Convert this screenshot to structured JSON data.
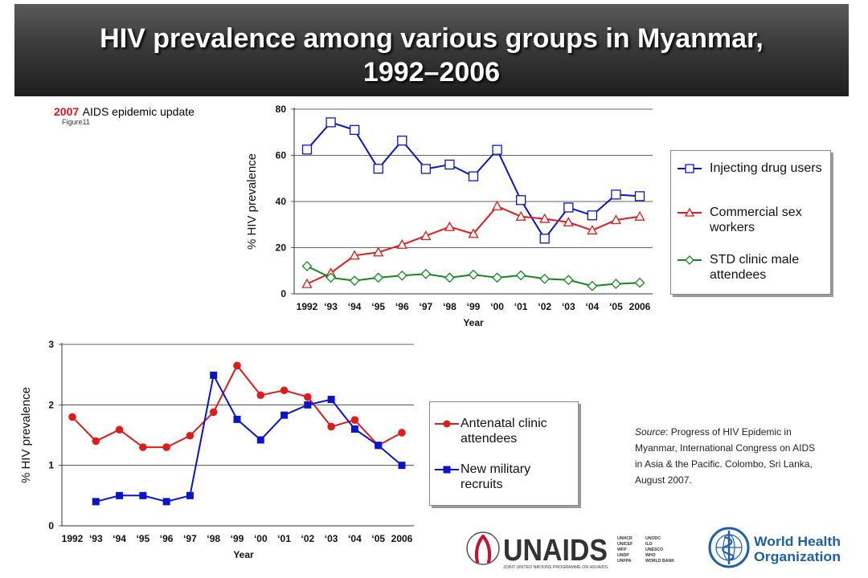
{
  "header": {
    "title_line1": "HIV prevalence among various groups in Myanmar,",
    "title_line2": "1992–2006"
  },
  "figure_ref": {
    "year": "2007",
    "publication": "AIDS epidemic update",
    "figure": "Figure11"
  },
  "source_note": {
    "label": "Source",
    "text": ": Progress of HIV Epidemic in Myanmar, International Congress on AIDS in Asia & the Pacific. Colombo, Sri Lanka, August 2007."
  },
  "logos": {
    "unaids": "UNAIDS",
    "unaids_tagline": "JOINT UNITED NATIONS PROGRAMME ON HIV/AIDS",
    "cosponsors": [
      "UNHCR",
      "UNICEF",
      "WFP",
      "UNDP",
      "UNFPA",
      "UNODC",
      "ILO",
      "UNESCO",
      "WHO",
      "WORLD BANK"
    ],
    "who_line1": "World Health",
    "who_line2": "Organization"
  },
  "chart_data": [
    {
      "type": "line",
      "x": [
        "1992",
        "‘93",
        "‘94",
        "‘95",
        "‘96",
        "‘97",
        "‘98",
        "‘99",
        "‘00",
        "‘01",
        "‘02",
        "‘03",
        "‘04",
        "‘05",
        "2006"
      ],
      "ylabel": "% HIV prevalence",
      "xlabel": "Year",
      "ylim": [
        0,
        80
      ],
      "yticks": [
        0,
        20,
        40,
        60,
        80
      ],
      "grid": true,
      "legend": "right",
      "series": [
        {
          "name": "Injecting drug users",
          "color": "#0a14c8",
          "marker": "square-open",
          "values": [
            62.5,
            74.3,
            71,
            54.2,
            66.4,
            54.1,
            56,
            50.9,
            62.4,
            40.6,
            23.9,
            37.4,
            34,
            43,
            42.3
          ]
        },
        {
          "name": "Commercial sex workers",
          "color": "#e01b1b",
          "marker": "triangle-open",
          "values": [
            4.3,
            9,
            16.6,
            18,
            21.3,
            25.1,
            29,
            26,
            38,
            33.5,
            32.5,
            31,
            27.5,
            32,
            33.5
          ]
        },
        {
          "name": "STD clinic male attendees",
          "color": "#11891e",
          "marker": "diamond-open",
          "values": [
            12,
            7,
            5.7,
            7,
            7.9,
            8.6,
            7,
            8.3,
            7,
            8,
            6.5,
            6,
            3.4,
            4.3,
            4.8
          ]
        }
      ]
    },
    {
      "type": "line",
      "x": [
        "1992",
        "‘93",
        "‘94",
        "‘95",
        "‘96",
        "‘97",
        "‘98",
        "‘99",
        "‘00",
        "‘01",
        "‘02",
        "‘03",
        "‘04",
        "‘05",
        "2006"
      ],
      "ylabel": "% HIV prevalence",
      "xlabel": "Year",
      "ylim": [
        0,
        3
      ],
      "yticks": [
        0,
        1,
        2,
        3
      ],
      "grid": true,
      "legend": "right",
      "series": [
        {
          "name": "Antenatal clinic attendees",
          "color": "#e01b1b",
          "marker": "circle-filled",
          "values": [
            1.8,
            1.4,
            1.59,
            1.3,
            1.3,
            1.49,
            1.88,
            2.65,
            2.16,
            2.24,
            2.13,
            1.64,
            1.75,
            1.33,
            1.54
          ]
        },
        {
          "name": "New military recruits",
          "color": "#0a14c8",
          "marker": "square-filled",
          "values": [
            null,
            0.4,
            0.5,
            0.5,
            0.4,
            0.5,
            2.49,
            1.76,
            1.42,
            1.83,
            2.0,
            2.09,
            1.6,
            1.33,
            1.0
          ]
        }
      ]
    }
  ]
}
